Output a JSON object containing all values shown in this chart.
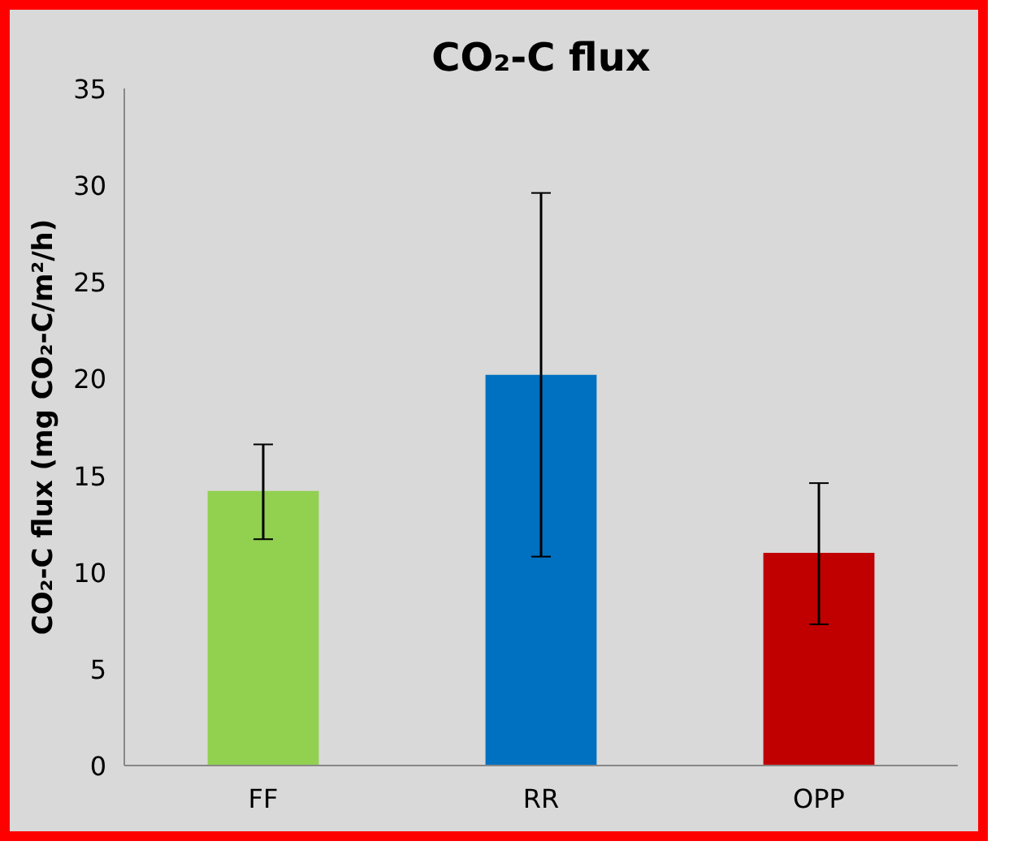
{
  "chart_data": {
    "type": "bar",
    "title": "CO₂-C flux",
    "ylabel": "CO₂-C flux (mg CO₂-C/m²/h)",
    "categories": [
      "FF",
      "RR",
      "OPP"
    ],
    "values": [
      14.2,
      20.2,
      11.0
    ],
    "colors": [
      "#92d050",
      "#0070c0",
      "#c00000"
    ],
    "errors": [
      [
        11.7,
        16.6
      ],
      [
        10.8,
        29.6
      ],
      [
        7.3,
        14.6
      ]
    ],
    "ylim": [
      0,
      35
    ],
    "yticks": [
      0,
      5,
      10,
      15,
      20,
      25,
      30,
      35
    ],
    "grid": false
  }
}
